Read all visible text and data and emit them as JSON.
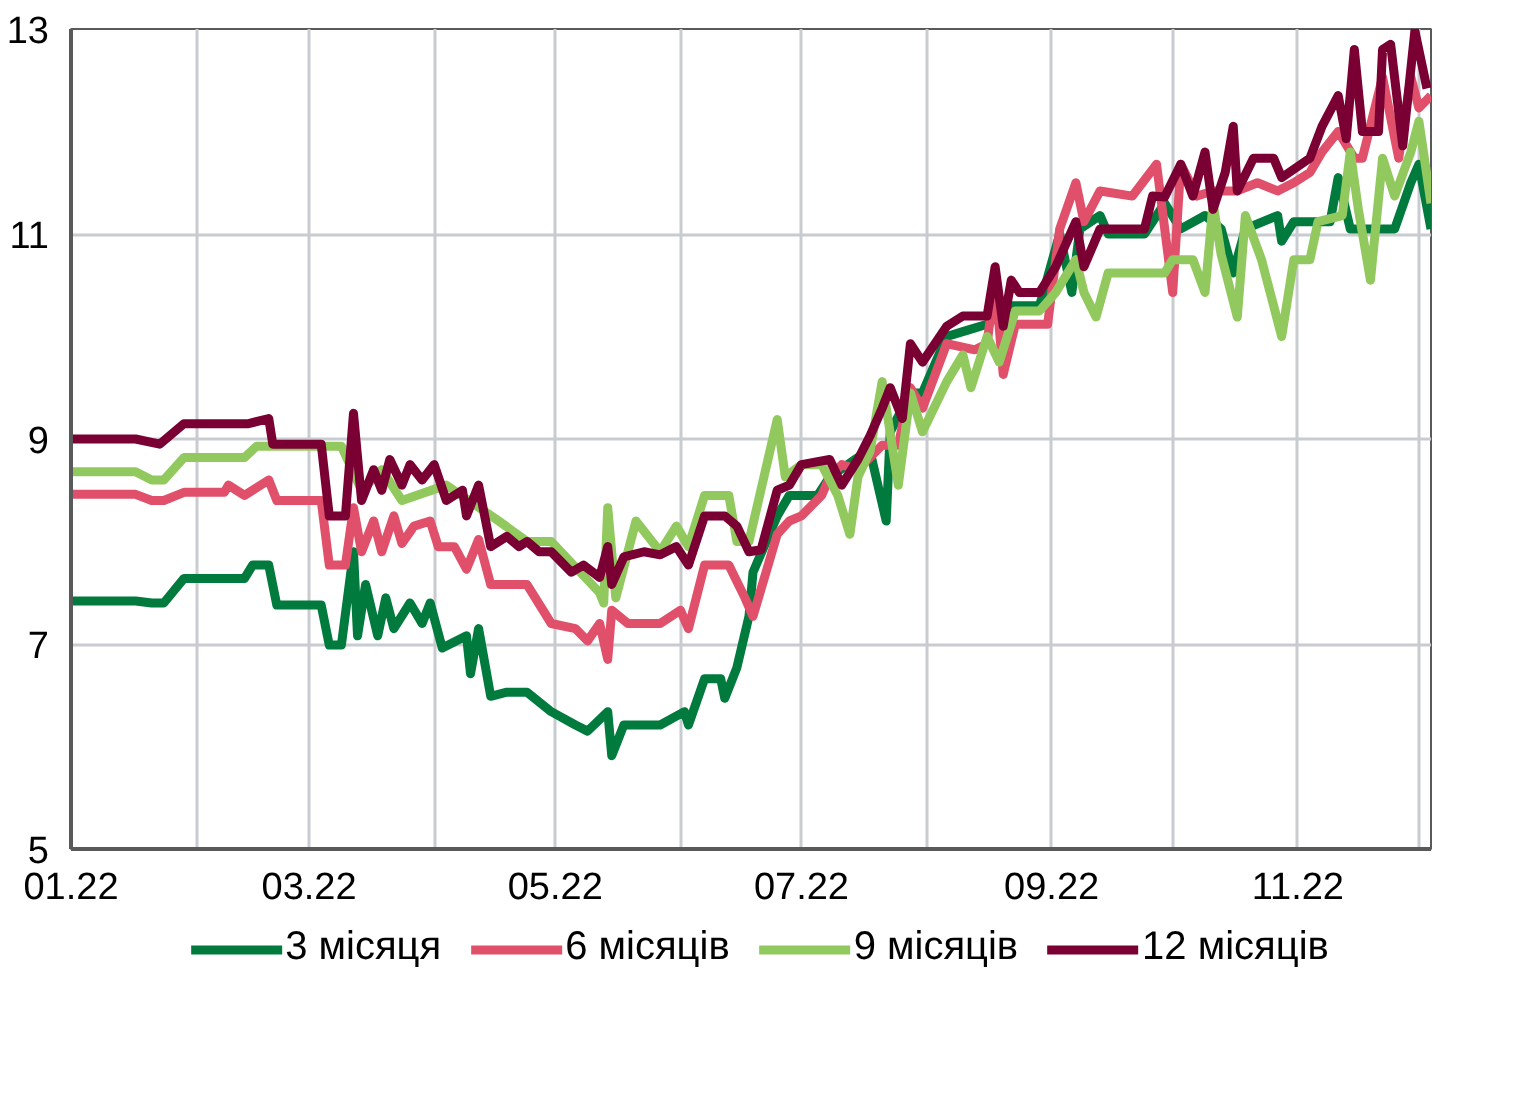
{
  "chart_data": {
    "type": "line",
    "xlim": [
      "2022-01-01",
      "2022-12-04"
    ],
    "xticks": [
      {
        "value": "2022-01-01",
        "label": "01.22"
      },
      {
        "value": "2022-02-01",
        "label": null
      },
      {
        "value": "2022-03-01",
        "label": "03.22"
      },
      {
        "value": "2022-04-01",
        "label": null
      },
      {
        "value": "2022-05-01",
        "label": "05.22"
      },
      {
        "value": "2022-06-01",
        "label": null
      },
      {
        "value": "2022-07-01",
        "label": "07.22"
      },
      {
        "value": "2022-08-01",
        "label": null
      },
      {
        "value": "2022-09-01",
        "label": "09.22"
      },
      {
        "value": "2022-10-01",
        "label": null
      },
      {
        "value": "2022-11-01",
        "label": "11.22"
      },
      {
        "value": "2022-12-01",
        "label": null
      }
    ],
    "ylim": [
      5,
      13
    ],
    "yticks": [
      5,
      7,
      9,
      11,
      13
    ],
    "grid": true,
    "legend": "bottom",
    "marker": "none",
    "line_style": "solid",
    "series": [
      {
        "name": "3 місяця",
        "color": "#007a3d",
        "x": [
          "2022-01-01",
          "2022-01-17",
          "2022-01-21",
          "2022-01-24",
          "2022-01-29",
          "2022-02-13",
          "2022-02-15",
          "2022-02-19",
          "2022-02-21",
          "2022-03-04",
          "2022-03-06",
          "2022-03-09",
          "2022-03-12",
          "2022-03-13",
          "2022-03-15",
          "2022-03-18",
          "2022-03-20",
          "2022-03-22",
          "2022-03-26",
          "2022-03-29",
          "2022-03-31",
          "2022-04-03",
          "2022-04-09",
          "2022-04-10",
          "2022-04-12",
          "2022-04-15",
          "2022-04-19",
          "2022-04-24",
          "2022-04-30",
          "2022-05-06",
          "2022-05-09",
          "2022-05-14",
          "2022-05-15",
          "2022-05-18",
          "2022-05-27",
          "2022-06-02",
          "2022-06-03",
          "2022-06-07",
          "2022-06-11",
          "2022-06-12",
          "2022-06-15",
          "2022-06-18",
          "2022-06-19",
          "2022-06-25",
          "2022-06-28",
          "2022-07-05",
          "2022-07-08",
          "2022-07-15",
          "2022-07-18",
          "2022-07-22",
          "2022-07-23",
          "2022-07-28",
          "2022-07-31",
          "2022-08-06",
          "2022-08-11",
          "2022-08-16",
          "2022-08-22",
          "2022-08-29",
          "2022-09-03",
          "2022-09-06",
          "2022-09-08",
          "2022-09-13",
          "2022-09-15",
          "2022-09-24",
          "2022-09-29",
          "2022-10-03",
          "2022-10-09",
          "2022-10-13",
          "2022-10-16",
          "2022-10-19",
          "2022-10-27",
          "2022-10-28",
          "2022-10-31",
          "2022-11-09",
          "2022-11-11",
          "2022-11-14",
          "2022-11-25",
          "2022-11-29",
          "2022-12-01",
          "2022-12-04"
        ],
        "values": [
          7.42,
          7.42,
          7.4,
          7.4,
          7.64,
          7.64,
          7.77,
          7.77,
          7.38,
          7.38,
          6.99,
          6.99,
          7.9,
          7.08,
          7.58,
          7.08,
          7.45,
          7.15,
          7.4,
          7.2,
          7.4,
          6.96,
          7.08,
          6.71,
          7.15,
          6.49,
          6.53,
          6.53,
          6.34,
          6.21,
          6.15,
          6.34,
          5.91,
          6.21,
          6.21,
          6.34,
          6.21,
          6.66,
          6.66,
          6.47,
          6.77,
          7.27,
          7.7,
          8.25,
          8.45,
          8.45,
          8.63,
          8.82,
          8.88,
          8.2,
          9.07,
          9.45,
          9.45,
          10.0,
          10.06,
          10.12,
          10.3,
          10.3,
          11.0,
          10.43,
          11.05,
          11.18,
          11.0,
          11.0,
          11.3,
          11.05,
          11.18,
          11.05,
          10.62,
          11.05,
          11.18,
          10.93,
          11.12,
          11.12,
          11.55,
          11.05,
          11.05,
          11.5,
          11.68,
          11.05
        ]
      },
      {
        "name": "6 місяців",
        "color": "#e0506a",
        "x": [
          "2022-01-01",
          "2022-01-17",
          "2022-01-21",
          "2022-01-24",
          "2022-01-29",
          "2022-02-08",
          "2022-02-09",
          "2022-02-13",
          "2022-02-19",
          "2022-02-21",
          "2022-03-04",
          "2022-03-06",
          "2022-03-10",
          "2022-03-12",
          "2022-03-14",
          "2022-03-17",
          "2022-03-19",
          "2022-03-22",
          "2022-03-24",
          "2022-03-27",
          "2022-03-31",
          "2022-04-02",
          "2022-04-06",
          "2022-04-09",
          "2022-04-12",
          "2022-04-15",
          "2022-04-20",
          "2022-04-24",
          "2022-04-30",
          "2022-05-06",
          "2022-05-09",
          "2022-05-12",
          "2022-05-14",
          "2022-05-15",
          "2022-05-19",
          "2022-05-27",
          "2022-06-01",
          "2022-06-03",
          "2022-06-07",
          "2022-06-13",
          "2022-06-17",
          "2022-06-19",
          "2022-06-25",
          "2022-06-28",
          "2022-07-01",
          "2022-07-06",
          "2022-07-08",
          "2022-07-11",
          "2022-07-15",
          "2022-07-18",
          "2022-07-21",
          "2022-07-25",
          "2022-07-28",
          "2022-07-31",
          "2022-08-06",
          "2022-08-13",
          "2022-08-16",
          "2022-08-18",
          "2022-08-20",
          "2022-08-23",
          "2022-08-31",
          "2022-09-03",
          "2022-09-07",
          "2022-09-09",
          "2022-09-13",
          "2022-09-21",
          "2022-09-27",
          "2022-10-01",
          "2022-10-03",
          "2022-10-07",
          "2022-10-11",
          "2022-10-17",
          "2022-10-22",
          "2022-10-27",
          "2022-10-31",
          "2022-11-04",
          "2022-11-07",
          "2022-11-11",
          "2022-11-15",
          "2022-11-17",
          "2022-11-22",
          "2022-11-26",
          "2022-11-29",
          "2022-12-01",
          "2022-12-04"
        ],
        "values": [
          8.46,
          8.46,
          8.4,
          8.4,
          8.48,
          8.48,
          8.55,
          8.45,
          8.6,
          8.4,
          8.4,
          7.77,
          7.77,
          8.33,
          7.9,
          8.2,
          7.9,
          8.25,
          7.98,
          8.15,
          8.2,
          7.95,
          7.95,
          7.73,
          8.02,
          7.58,
          7.58,
          7.58,
          7.2,
          7.15,
          7.03,
          7.2,
          6.85,
          7.33,
          7.2,
          7.2,
          7.33,
          7.15,
          7.77,
          7.77,
          7.45,
          7.27,
          8.07,
          8.2,
          8.25,
          8.45,
          8.63,
          8.75,
          8.7,
          8.82,
          8.94,
          8.94,
          9.5,
          9.3,
          9.93,
          9.87,
          9.93,
          10.55,
          9.63,
          10.12,
          10.12,
          11.05,
          11.5,
          11.12,
          11.42,
          11.37,
          11.68,
          10.43,
          11.68,
          11.37,
          11.42,
          11.42,
          11.5,
          11.42,
          11.5,
          11.6,
          11.8,
          12.0,
          11.74,
          11.74,
          12.53,
          11.74,
          12.53,
          12.23,
          12.35
        ]
      },
      {
        "name": "9 місяців",
        "color": "#92c95f",
        "x": [
          "2022-01-01",
          "2022-01-17",
          "2022-01-21",
          "2022-01-24",
          "2022-01-29",
          "2022-02-13",
          "2022-02-16",
          "2022-03-06",
          "2022-03-09",
          "2022-03-14",
          "2022-03-19",
          "2022-03-24",
          "2022-04-04",
          "2022-04-17",
          "2022-04-24",
          "2022-04-30",
          "2022-05-12",
          "2022-05-13",
          "2022-05-14",
          "2022-05-16",
          "2022-05-21",
          "2022-05-27",
          "2022-05-31",
          "2022-06-03",
          "2022-06-07",
          "2022-06-13",
          "2022-06-15",
          "2022-06-18",
          "2022-06-25",
          "2022-06-27",
          "2022-07-01",
          "2022-07-06",
          "2022-07-10",
          "2022-07-13",
          "2022-07-15",
          "2022-07-18",
          "2022-07-21",
          "2022-07-25",
          "2022-07-28",
          "2022-07-31",
          "2022-08-06",
          "2022-08-10",
          "2022-08-12",
          "2022-08-16",
          "2022-08-19",
          "2022-08-23",
          "2022-08-29",
          "2022-09-02",
          "2022-09-07",
          "2022-09-09",
          "2022-09-12",
          "2022-09-15",
          "2022-09-29",
          "2022-10-01",
          "2022-10-06",
          "2022-10-09",
          "2022-10-11",
          "2022-10-13",
          "2022-10-17",
          "2022-10-19",
          "2022-10-23",
          "2022-10-28",
          "2022-10-31",
          "2022-11-04",
          "2022-11-06",
          "2022-11-12",
          "2022-11-14",
          "2022-11-16",
          "2022-11-19",
          "2022-11-22",
          "2022-11-25",
          "2022-11-29",
          "2022-12-01",
          "2022-12-04"
        ],
        "values": [
          8.68,
          8.68,
          8.6,
          8.6,
          8.82,
          8.82,
          8.93,
          8.93,
          8.93,
          8.5,
          8.7,
          8.4,
          8.55,
          8.2,
          8.0,
          8.0,
          7.5,
          7.4,
          8.33,
          7.45,
          8.2,
          7.9,
          8.15,
          7.95,
          8.45,
          8.45,
          8.0,
          8.0,
          9.19,
          8.63,
          8.75,
          8.75,
          8.45,
          8.07,
          8.63,
          8.88,
          9.56,
          8.55,
          9.45,
          9.07,
          9.56,
          9.82,
          9.5,
          10.0,
          9.75,
          10.25,
          10.25,
          10.43,
          10.75,
          10.43,
          10.19,
          10.62,
          10.62,
          10.75,
          10.75,
          10.43,
          11.3,
          10.8,
          10.19,
          11.18,
          10.75,
          10.0,
          10.75,
          10.75,
          11.12,
          11.18,
          11.8,
          11.24,
          10.55,
          11.74,
          11.37,
          11.8,
          12.1,
          11.3
        ]
      },
      {
        "name": "12 місяців",
        "color": "#7a0033",
        "x": [
          "2022-01-01",
          "2022-01-17",
          "2022-01-23",
          "2022-01-29",
          "2022-02-14",
          "2022-02-19",
          "2022-02-20",
          "2022-03-04",
          "2022-03-06",
          "2022-03-10",
          "2022-03-12",
          "2022-03-14",
          "2022-03-17",
          "2022-03-19",
          "2022-03-21",
          "2022-03-24",
          "2022-03-26",
          "2022-03-29",
          "2022-04-01",
          "2022-04-04",
          "2022-04-08",
          "2022-04-09",
          "2022-04-12",
          "2022-04-15",
          "2022-04-19",
          "2022-04-22",
          "2022-04-24",
          "2022-04-27",
          "2022-04-30",
          "2022-05-05",
          "2022-05-08",
          "2022-05-12",
          "2022-05-14",
          "2022-05-15",
          "2022-05-18",
          "2022-05-23",
          "2022-05-27",
          "2022-05-31",
          "2022-06-03",
          "2022-06-07",
          "2022-06-12",
          "2022-06-15",
          "2022-06-18",
          "2022-06-21",
          "2022-06-25",
          "2022-06-28",
          "2022-07-01",
          "2022-07-08",
          "2022-07-11",
          "2022-07-15",
          "2022-07-18",
          "2022-07-21",
          "2022-07-23",
          "2022-07-26",
          "2022-07-28",
          "2022-07-31",
          "2022-08-06",
          "2022-08-10",
          "2022-08-16",
          "2022-08-18",
          "2022-08-20",
          "2022-08-22",
          "2022-08-24",
          "2022-08-29",
          "2022-09-02",
          "2022-09-07",
          "2022-09-09",
          "2022-09-13",
          "2022-09-24",
          "2022-09-26",
          "2022-09-29",
          "2022-10-03",
          "2022-10-06",
          "2022-10-09",
          "2022-10-11",
          "2022-10-14",
          "2022-10-16",
          "2022-10-17",
          "2022-10-21",
          "2022-10-26",
          "2022-10-28",
          "2022-11-04",
          "2022-11-07",
          "2022-11-11",
          "2022-11-13",
          "2022-11-15",
          "2022-11-17",
          "2022-11-21",
          "2022-11-22",
          "2022-11-24",
          "2022-11-27",
          "2022-11-30",
          "2022-12-03"
        ],
        "values": [
          9.0,
          9.0,
          8.95,
          9.15,
          9.15,
          9.2,
          8.95,
          8.95,
          8.25,
          8.25,
          9.25,
          8.4,
          8.7,
          8.5,
          8.8,
          8.55,
          8.75,
          8.6,
          8.75,
          8.4,
          8.5,
          8.25,
          8.55,
          7.95,
          8.05,
          7.95,
          8.0,
          7.9,
          7.9,
          7.7,
          7.77,
          7.65,
          7.95,
          7.58,
          7.85,
          7.9,
          7.87,
          7.95,
          7.77,
          8.25,
          8.25,
          8.15,
          7.9,
          7.92,
          8.5,
          8.55,
          8.75,
          8.8,
          8.55,
          8.8,
          9.03,
          9.3,
          9.5,
          9.2,
          9.93,
          9.75,
          10.1,
          10.2,
          10.2,
          10.68,
          10.1,
          10.55,
          10.43,
          10.43,
          10.68,
          11.12,
          10.68,
          11.05,
          11.05,
          11.37,
          11.36,
          11.68,
          11.37,
          11.8,
          11.24,
          11.6,
          12.05,
          11.42,
          11.74,
          11.74,
          11.55,
          11.74,
          12.05,
          12.35,
          11.93,
          12.8,
          12.0,
          12.0,
          12.8,
          12.85,
          11.86,
          12.98,
          12.42
        ]
      }
    ]
  }
}
